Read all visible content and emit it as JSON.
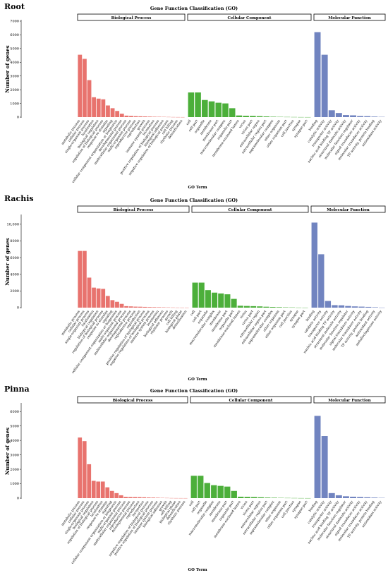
{
  "chart_data": [
    {
      "type": "bar",
      "panel_label": "Root",
      "title": "Gene Function Classification (GO)",
      "xlabel": "GO Term",
      "ylabel": "Number of genes",
      "ylim": [
        0,
        7000
      ],
      "yticks": [
        0,
        1000,
        2000,
        3000,
        4000,
        5000,
        6000,
        7000
      ],
      "ytick_labels": [
        "0",
        "1000",
        "2000",
        "3000",
        "4000",
        "5000",
        "6000",
        "7000"
      ],
      "grid": false,
      "facets": [
        {
          "name": "Biological Process",
          "color": "#e8736e",
          "categories": [
            "metabolic process",
            "cellular process",
            "single-organism process",
            "localization",
            "biological regulation",
            "regulation of biological process",
            "response to stimulus",
            "signaling",
            "cellular component organization or biogenesis",
            "developmental process",
            "multicellular organismal process",
            "multi-organism process",
            "reproductive process",
            "reproduction",
            "growth",
            "immune system process",
            "locomotion",
            "positive regulation of biological process",
            "biological adhesion",
            "negative regulation of biological process",
            "cell killing",
            "rhythmic process",
            "detoxification"
          ],
          "values": [
            4550,
            4250,
            2700,
            1450,
            1350,
            1300,
            850,
            650,
            450,
            250,
            110,
            90,
            70,
            60,
            50,
            40,
            30,
            25,
            20,
            15,
            8,
            5,
            3
          ]
        },
        {
          "name": "Cellular Component",
          "color": "#4caf3a",
          "categories": [
            "cell",
            "cell part",
            "organelle",
            "membrane",
            "membrane part",
            "macromolecular complex",
            "organelle part",
            "membrane-enclosed lumen",
            "virion",
            "virion part",
            "extracellular region",
            "extracellular region part",
            "supramolecular complex",
            "other organism",
            "other organism part",
            "cell junction",
            "synapse",
            "synapse part"
          ],
          "values": [
            1800,
            1800,
            1250,
            1150,
            1050,
            1000,
            650,
            120,
            100,
            90,
            70,
            50,
            30,
            20,
            15,
            10,
            5,
            3
          ]
        },
        {
          "name": "Molecular Function",
          "color": "#7184c0",
          "categories": [
            "binding",
            "catalytic activity",
            "transporter activity",
            "nucleic acid binding TF activity",
            "structural molecule activity",
            "molecular function regulator",
            "signal transducer activity",
            "molecular transducer activity",
            "TF activity, protein binding",
            "antioxidant activity"
          ],
          "values": [
            6200,
            4550,
            500,
            300,
            150,
            130,
            80,
            70,
            40,
            20
          ]
        }
      ]
    },
    {
      "type": "bar",
      "panel_label": "Rachis",
      "title": "Gene Function Classification (GO)",
      "xlabel": "GO Term",
      "ylabel": "Number of genes",
      "ylim": [
        0,
        11000
      ],
      "yticks": [
        0,
        2000,
        4000,
        6000,
        8000,
        10000
      ],
      "ytick_labels": [
        "0",
        "2000",
        "4000",
        "6000",
        "8000",
        "10,000"
      ],
      "grid": false,
      "facets": [
        {
          "name": "Biological Process",
          "color": "#e8736e",
          "categories": [
            "metabolic process",
            "cellular process",
            "single-organism process",
            "localization",
            "biological regulation",
            "regulation of biological process",
            "response to stimulus",
            "signaling",
            "cellular component organization or biogenesis",
            "multi-organism process",
            "multicellular organismal process",
            "developmental process",
            "reproductive process",
            "reproduction",
            "positive regulation of biological process",
            "negative regulation of biological process",
            "immune system process",
            "locomotion",
            "biological adhesion",
            "rhythmic process",
            "growth",
            "cell killing",
            "biological phase",
            "detoxification"
          ],
          "values": [
            6800,
            6800,
            3600,
            2400,
            2300,
            2250,
            1400,
            900,
            700,
            450,
            180,
            150,
            120,
            110,
            90,
            70,
            60,
            50,
            40,
            30,
            20,
            10,
            8,
            5
          ]
        },
        {
          "name": "Cellular Component",
          "color": "#4caf3a",
          "categories": [
            "cell",
            "cell part",
            "organelle",
            "macromolecular complex",
            "membrane",
            "membrane part",
            "organelle part",
            "membrane-enclosed lumen",
            "virion",
            "virion part",
            "extracellular region",
            "extracellular region part",
            "supramolecular complex",
            "other organism",
            "other organism part",
            "cell junction",
            "synapse",
            "synapse part"
          ],
          "values": [
            3000,
            3000,
            2100,
            1800,
            1700,
            1600,
            1050,
            230,
            200,
            180,
            150,
            110,
            80,
            60,
            40,
            30,
            10,
            5
          ]
        },
        {
          "name": "Molecular Function",
          "color": "#7184c0",
          "categories": [
            "binding",
            "catalytic activity",
            "transporter activity",
            "nucleic acid binding TF activity",
            "structural molecule activity",
            "molecular function regulator",
            "signal transducer activity",
            "molecular transducer activity",
            "TF activity, protein binding",
            "antioxidant activity",
            "metallochaperone activity"
          ],
          "values": [
            10200,
            6400,
            800,
            300,
            280,
            200,
            150,
            120,
            90,
            50,
            10
          ]
        }
      ]
    },
    {
      "type": "bar",
      "panel_label": "Pinna",
      "title": "Gene Function Classification (GO)",
      "xlabel": "GO Term",
      "ylabel": "Number of genes",
      "ylim": [
        0,
        6500
      ],
      "yticks": [
        0,
        1000,
        2000,
        3000,
        4000,
        5000,
        6000
      ],
      "ytick_labels": [
        "0",
        "1000",
        "2000",
        "3000",
        "4000",
        "5000",
        "6000"
      ],
      "grid": false,
      "facets": [
        {
          "name": "Biological Process",
          "color": "#e8736e",
          "categories": [
            "metabolic process",
            "cellular process",
            "single-organism process",
            "biological regulation",
            "regulation of biological process",
            "localization",
            "response to stimulus",
            "signaling",
            "cellular component organization or biogenesis",
            "multi-organism process",
            "multicellular organismal process",
            "reproductive process",
            "developmental process",
            "reproduction",
            "locomotion",
            "negative regulation of biological process",
            "positive regulation of biological process",
            "immune system process",
            "biological adhesion",
            "growth",
            "cell killing",
            "biological phase",
            "detoxification",
            "rhythmic process"
          ],
          "values": [
            4200,
            3950,
            2350,
            1200,
            1150,
            1150,
            750,
            500,
            350,
            200,
            90,
            80,
            75,
            70,
            60,
            45,
            40,
            30,
            20,
            15,
            8,
            5,
            4,
            3
          ]
        },
        {
          "name": "Cellular Component",
          "color": "#4caf3a",
          "categories": [
            "cell",
            "cell part",
            "organelle",
            "macromolecular complex",
            "membrane",
            "membrane part",
            "organelle part",
            "membrane-enclosed lumen",
            "virion",
            "virion part",
            "extracellular region",
            "extracellular region part",
            "supramolecular complex",
            "other organism",
            "other organism part",
            "cell junction",
            "synapse",
            "synapse part"
          ],
          "values": [
            1550,
            1550,
            1050,
            900,
            850,
            800,
            500,
            100,
            90,
            80,
            60,
            40,
            30,
            20,
            15,
            10,
            5,
            3
          ]
        },
        {
          "name": "Molecular Function",
          "color": "#7184c0",
          "categories": [
            "binding",
            "catalytic activity",
            "transporter activity",
            "nucleic acid binding TF activity",
            "molecular function regulator",
            "structural molecule activity",
            "signal transducer activity",
            "molecular transducer activity",
            "TF activity, protein binding",
            "antioxidant activity"
          ],
          "values": [
            5700,
            4300,
            350,
            200,
            130,
            100,
            80,
            60,
            40,
            20
          ]
        }
      ]
    }
  ]
}
